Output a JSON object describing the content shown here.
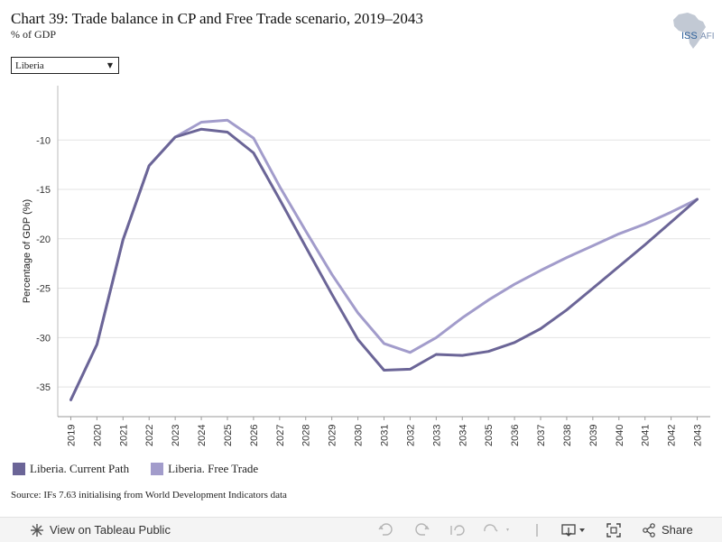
{
  "header": {
    "title": "Chart 39: Trade balance in CP and Free Trade scenario, 2019–2043",
    "subtitle": "% of GDP",
    "logo_text_a": "ISS",
    "logo_text_b": "AFI"
  },
  "filter": {
    "selected": "Liberia"
  },
  "chart_data": {
    "type": "line",
    "x": [
      2019,
      2020,
      2021,
      2022,
      2023,
      2024,
      2025,
      2026,
      2027,
      2028,
      2029,
      2030,
      2031,
      2032,
      2033,
      2034,
      2035,
      2036,
      2037,
      2038,
      2039,
      2040,
      2041,
      2042,
      2043
    ],
    "series": [
      {
        "name": "Liberia. Current Path",
        "color": "#6b6597",
        "values": [
          -36.3,
          -30.7,
          -20.1,
          -12.6,
          -9.7,
          -8.9,
          -9.2,
          -11.3,
          -16.0,
          -20.8,
          -25.6,
          -30.2,
          -33.3,
          -33.2,
          -31.7,
          -31.8,
          -31.4,
          -30.5,
          -29.1,
          -27.2,
          -25.0,
          -22.8,
          -20.6,
          -18.3,
          -16.0
        ]
      },
      {
        "name": "Liberia. Free Trade",
        "color": "#a29ccb",
        "values": [
          -36.3,
          -30.7,
          -20.1,
          -12.6,
          -9.7,
          -8.2,
          -8.0,
          -9.8,
          -14.7,
          -19.2,
          -23.6,
          -27.5,
          -30.6,
          -31.5,
          -30.0,
          -28.0,
          -26.2,
          -24.6,
          -23.2,
          -21.9,
          -20.7,
          -19.5,
          -18.5,
          -17.3,
          -16.0
        ]
      }
    ],
    "ylabel": "Percentage of GDP (%)",
    "xlabel": "",
    "ylim": [
      -38,
      -4.5
    ],
    "yticks": [
      -10,
      -15,
      -20,
      -25,
      -30,
      -35
    ],
    "grid": true,
    "legend": "bottom-left"
  },
  "source": "Source: IFs 7.63 initialising from World Development Indicators data",
  "toolbar": {
    "view_label": "View on Tableau Public",
    "share_label": "Share"
  }
}
